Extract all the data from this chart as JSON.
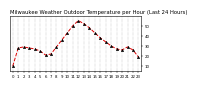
{
  "title": "Milwaukee Weather Outdoor Temperature per Hour (Last 24 Hours)",
  "hours": [
    0,
    1,
    2,
    3,
    4,
    5,
    6,
    7,
    8,
    9,
    10,
    11,
    12,
    13,
    14,
    15,
    16,
    17,
    18,
    19,
    20,
    21,
    22,
    23
  ],
  "temps": [
    10,
    28,
    29,
    28,
    27,
    25,
    21,
    22,
    29,
    36,
    43,
    50,
    55,
    52,
    48,
    43,
    38,
    34,
    30,
    27,
    26,
    29,
    26,
    19
  ],
  "ylim": [
    5,
    60
  ],
  "ytick_vals": [
    10,
    20,
    30,
    40,
    50
  ],
  "ytick_labels": [
    "10",
    "20",
    "30",
    "40",
    "50"
  ],
  "line_color": "#dd0000",
  "line_style": "--",
  "marker": "^",
  "marker_color": "#000000",
  "marker_size": 1.8,
  "grid_color": "#999999",
  "grid_style": ":",
  "bg_color": "#ffffff",
  "title_fontsize": 3.8,
  "tick_fontsize": 2.8,
  "line_width": 0.7
}
